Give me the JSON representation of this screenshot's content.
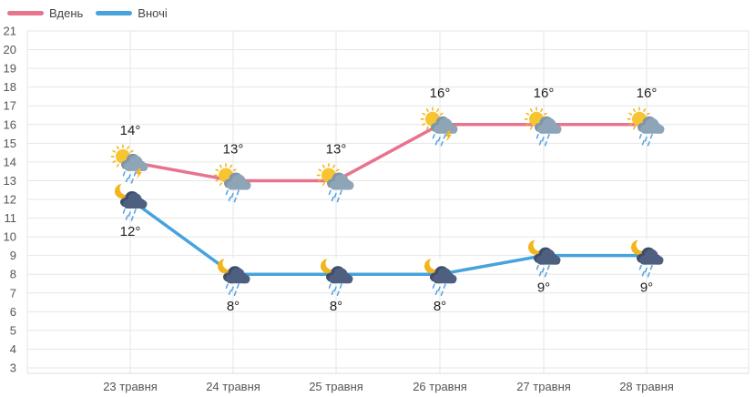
{
  "chart_data": {
    "type": "line",
    "categories": [
      "23 травня",
      "24 травня",
      "25 травня",
      "26 травня",
      "27 травня",
      "28 травня"
    ],
    "series": [
      {
        "name": "Вдень",
        "color": "#e8738e",
        "values": [
          14,
          13,
          13,
          16,
          16,
          16
        ],
        "labels": [
          "14°",
          "13°",
          "13°",
          "16°",
          "16°",
          "16°"
        ],
        "icons": [
          "sun-cloud-rain-thunder-icon",
          "sun-cloud-rain-icon",
          "sun-cloud-rain-icon",
          "sun-cloud-rain-thunder-icon",
          "sun-cloud-rain-icon",
          "sun-cloud-rain-icon"
        ]
      },
      {
        "name": "Вночі",
        "color": "#46a3dc",
        "values": [
          12,
          8,
          8,
          8,
          9,
          9
        ],
        "labels": [
          "12°",
          "8°",
          "8°",
          "8°",
          "9°",
          "9°"
        ],
        "icons": [
          "moon-cloud-rain-icon",
          "moon-cloud-rain-icon",
          "moon-cloud-rain-icon",
          "moon-cloud-rain-icon",
          "moon-cloud-rain-icon",
          "moon-cloud-rain-icon"
        ]
      }
    ],
    "ylim": [
      3,
      21
    ],
    "yticks": [
      3,
      4,
      5,
      6,
      7,
      8,
      9,
      10,
      11,
      12,
      13,
      14,
      15,
      16,
      17,
      18,
      19,
      20,
      21
    ],
    "grid": true,
    "legend_position": "top-left"
  }
}
